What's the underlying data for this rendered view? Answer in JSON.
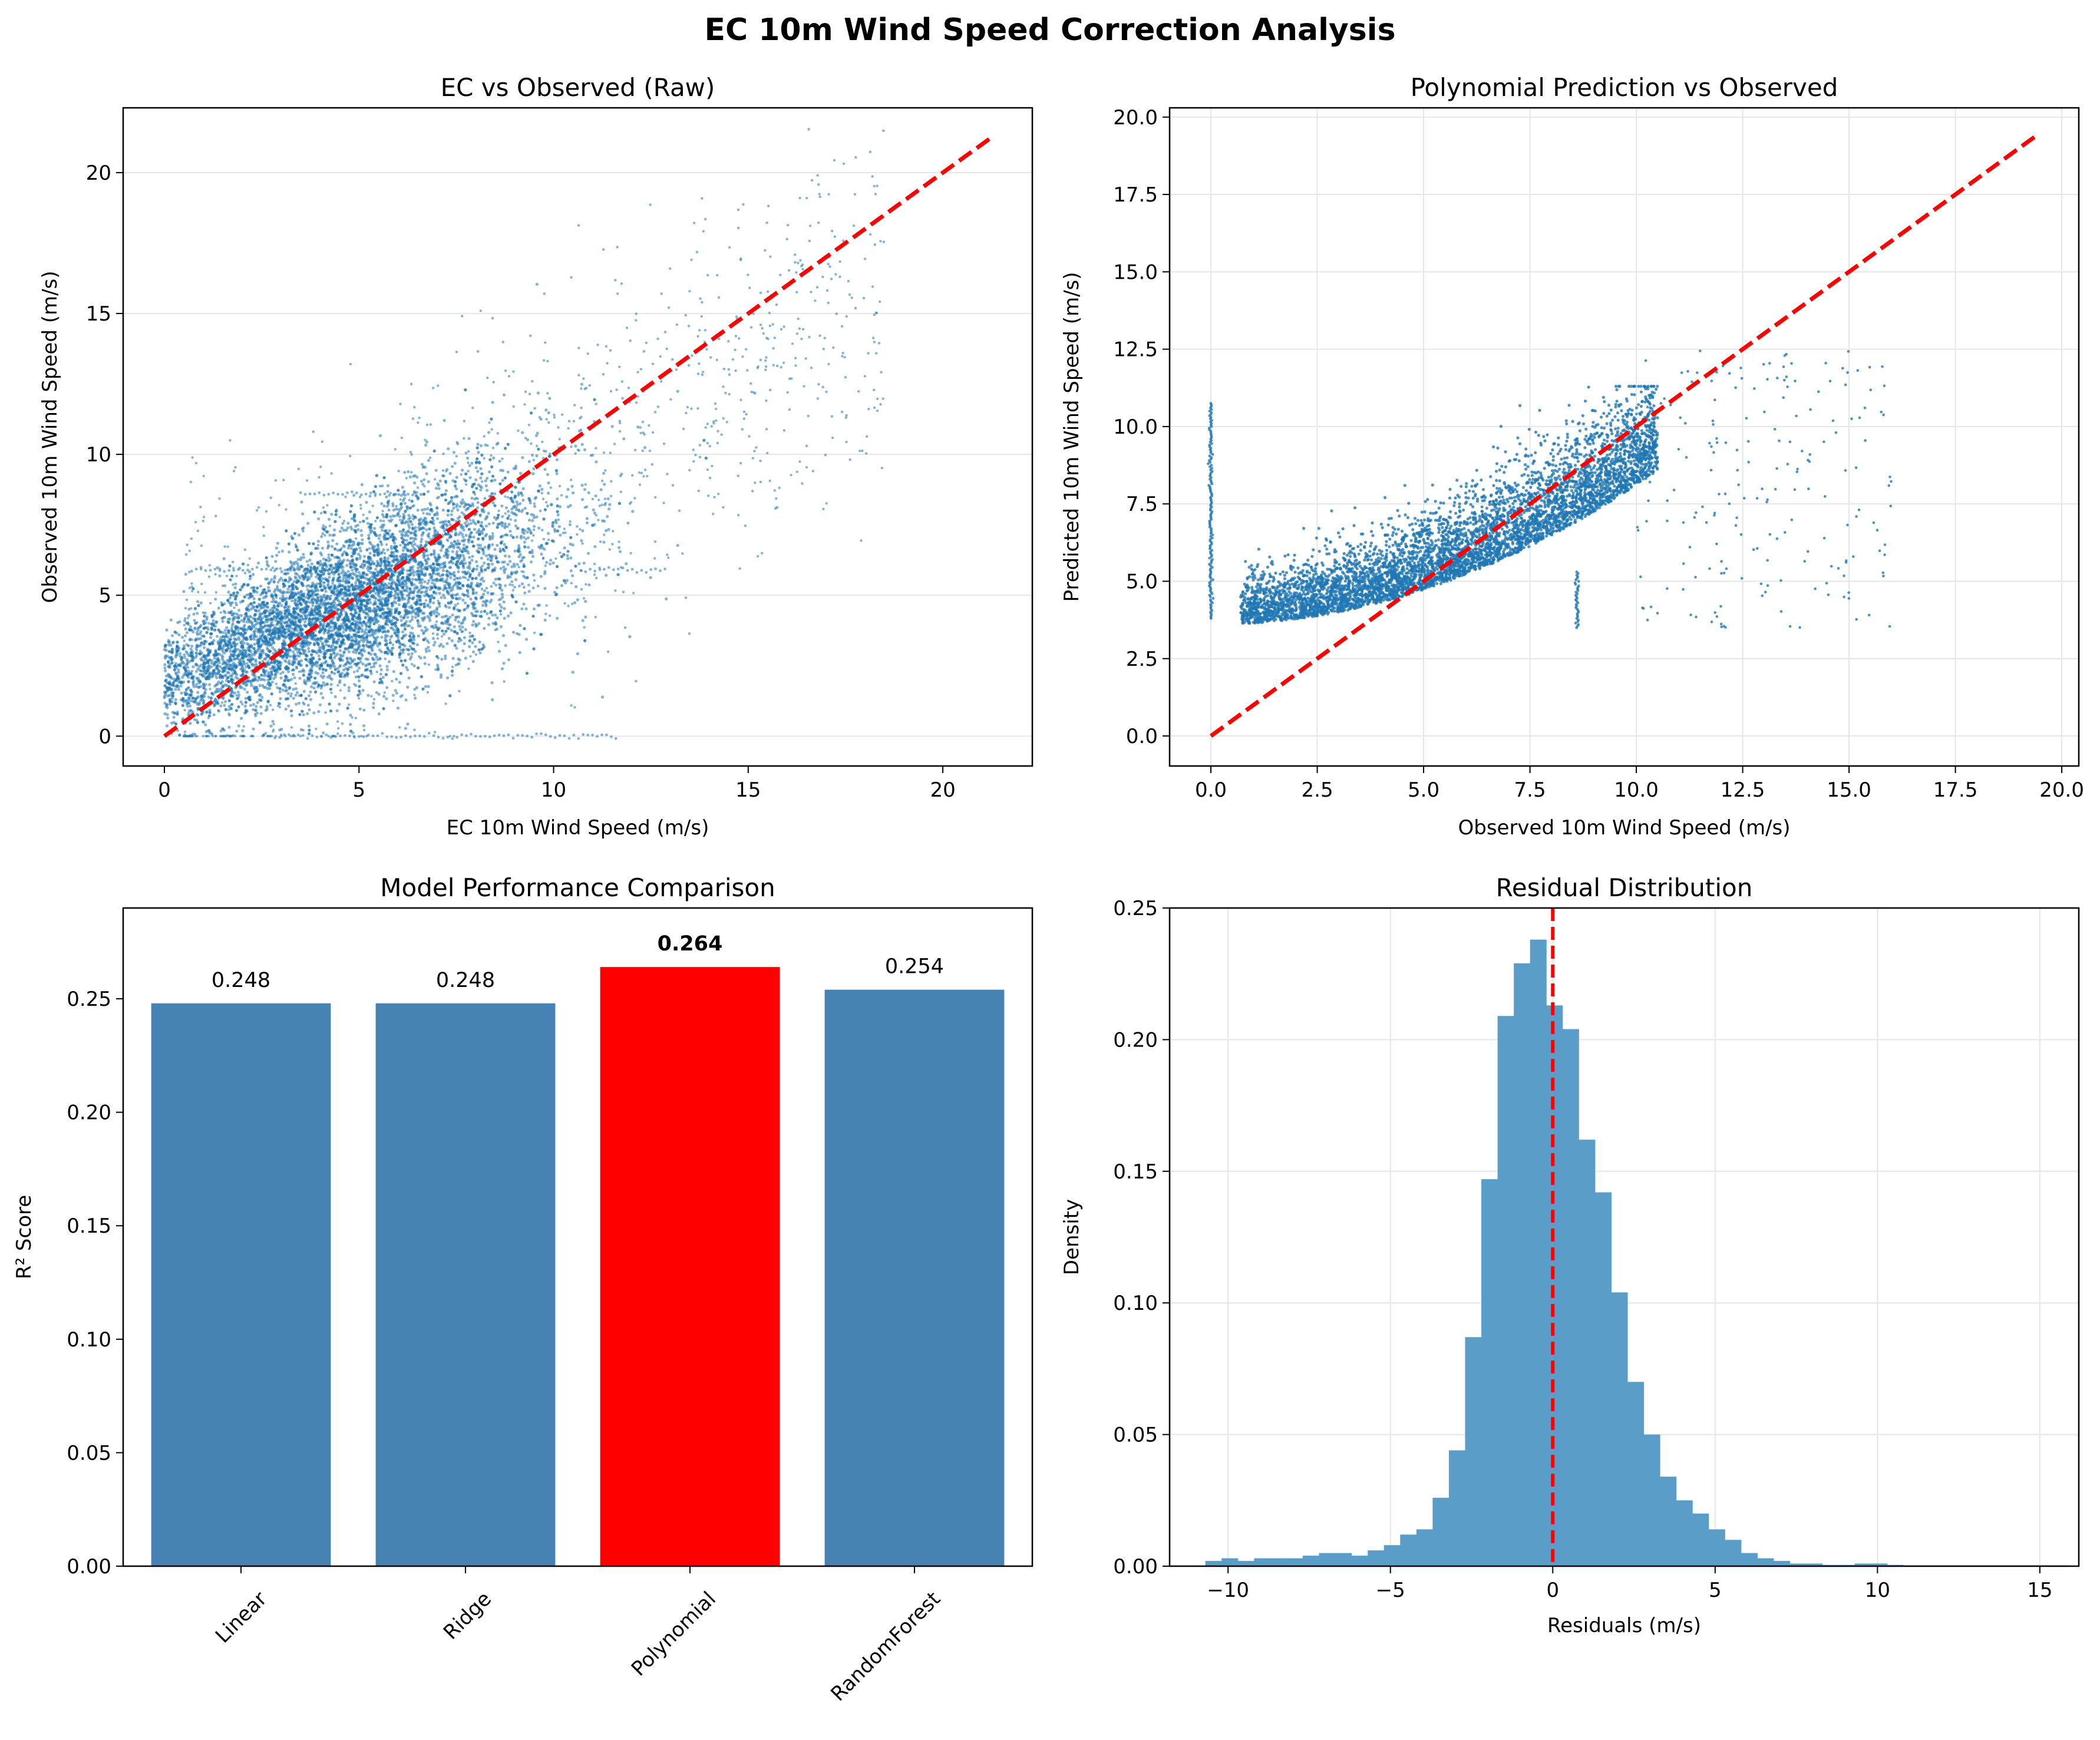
{
  "figure": {
    "title": "EC 10m Wind Speed Correction Analysis"
  },
  "colors": {
    "scatter": "#1f77b4",
    "bar": "#4682b4",
    "bar_highlight": "#ff0000",
    "hist": "#5b9dc9",
    "reference_line": "#ff0000",
    "grid": "#e6e6e6"
  },
  "chart_data": [
    {
      "type": "scatter",
      "title": "EC vs Observed (Raw)",
      "xlabel": "EC 10m Wind Speed (m/s)",
      "ylabel": "Observed 10m Wind Speed (m/s)",
      "xlim": [
        -1.06,
        22.3
      ],
      "ylim": [
        -1.06,
        22.3
      ],
      "xticks": [
        0,
        5,
        10,
        15,
        20
      ],
      "yticks": [
        0,
        5,
        10,
        15,
        20
      ],
      "grid": true,
      "reference_line": {
        "x": [
          0,
          21.2
        ],
        "y": [
          0,
          21.2
        ],
        "style": "dashed",
        "color": "red"
      },
      "point_cloud": {
        "description_points": "dense cloud of many thousands of points centred along y≈0.55x+2",
        "x_range": [
          0,
          18.8
        ],
        "y_range": [
          0,
          21.3
        ],
        "horizontal_streaks": [
          {
            "y": 0.0,
            "x_from": 2.6,
            "x_to": 11.6
          },
          {
            "y": 5.9,
            "x_from": 0.7,
            "x_to": 4.5
          },
          {
            "y": 5.9,
            "x_from": 10.7,
            "x_to": 12.9
          },
          {
            "y": 5.3,
            "x_from": 5.4,
            "x_to": 9.6
          },
          {
            "y": 8.6,
            "x_from": 3.5,
            "x_to": 6.5
          }
        ]
      }
    },
    {
      "type": "scatter",
      "title": "Polynomial Prediction vs Observed",
      "xlabel": "Observed 10m Wind Speed (m/s)",
      "ylabel": "Predicted 10m Wind Speed (m/s)",
      "xlim": [
        -0.97,
        20.4
      ],
      "ylim": [
        -0.97,
        20.3
      ],
      "xticks": [
        0.0,
        2.5,
        5.0,
        7.5,
        10.0,
        12.5,
        15.0,
        17.5,
        20.0
      ],
      "yticks": [
        0.0,
        2.5,
        5.0,
        7.5,
        10.0,
        12.5,
        15.0,
        17.5,
        20.0
      ],
      "grid": true,
      "reference_line": {
        "x": [
          0,
          19.4
        ],
        "y": [
          0,
          19.4
        ],
        "style": "dashed",
        "color": "red"
      },
      "point_cloud": {
        "description_points": "points concentrated for observed 0.7–10 m/s with predicted 3.5–10.5 m/s; vertical column at observed 0 spanning 3.8–10.8",
        "x_range": [
          0,
          19.4
        ],
        "y_range": [
          3.4,
          12.6
        ],
        "vertical_streaks": [
          {
            "x": 0.0,
            "y_from": 3.8,
            "y_to": 10.8
          },
          {
            "x": 8.6,
            "y_from": 3.5,
            "y_to": 5.3
          }
        ]
      }
    },
    {
      "type": "bar",
      "title": "Model Performance Comparison",
      "xlabel": "",
      "ylabel": "R² Score",
      "categories": [
        "Linear",
        "Ridge",
        "Polynomial",
        "RandomForest"
      ],
      "values": [
        0.248,
        0.248,
        0.264,
        0.254
      ],
      "value_labels": [
        "0.248",
        "0.248",
        "0.264",
        "0.254"
      ],
      "highlight_index": 2,
      "ylim": [
        0,
        0.29
      ],
      "yticks": [
        0.0,
        0.05,
        0.1,
        0.15,
        0.2,
        0.25
      ],
      "ytick_labels": [
        "0.00",
        "0.05",
        "0.10",
        "0.15",
        "0.20",
        "0.25"
      ],
      "grid": false
    },
    {
      "type": "histogram",
      "title": "Residual Distribution",
      "xlabel": "Residuals (m/s)",
      "ylabel": "Density",
      "xlim": [
        -11.8,
        16.2
      ],
      "ylim": [
        0,
        0.25
      ],
      "xticks": [
        -10,
        -5,
        0,
        5,
        10,
        15
      ],
      "xtick_labels": [
        "−10",
        "−5",
        "0",
        "5",
        "10",
        "15"
      ],
      "yticks": [
        0.0,
        0.05,
        0.1,
        0.15,
        0.2,
        0.25
      ],
      "ytick_labels": [
        "0.00",
        "0.05",
        "0.10",
        "0.15",
        "0.20",
        "0.25"
      ],
      "grid": true,
      "vertical_line": {
        "x": 0,
        "style": "dashed",
        "color": "red"
      },
      "bin_start": -10.7,
      "bin_width": 0.5,
      "densities": [
        0.002,
        0.003,
        0.002,
        0.003,
        0.003,
        0.003,
        0.004,
        0.005,
        0.005,
        0.004,
        0.006,
        0.008,
        0.012,
        0.014,
        0.026,
        0.044,
        0.087,
        0.147,
        0.209,
        0.229,
        0.238,
        0.213,
        0.204,
        0.162,
        0.142,
        0.104,
        0.07,
        0.05,
        0.034,
        0.025,
        0.02,
        0.014,
        0.01,
        0.005,
        0.003,
        0.002,
        0.001,
        0.001,
        0.0005,
        0.0005,
        0.001,
        0.001,
        0.0005,
        0.0003,
        0.0003,
        0.0003,
        0.0003,
        0.0003,
        0.0003,
        0.0003,
        0.0003,
        0.0003,
        0.0003
      ]
    }
  ]
}
